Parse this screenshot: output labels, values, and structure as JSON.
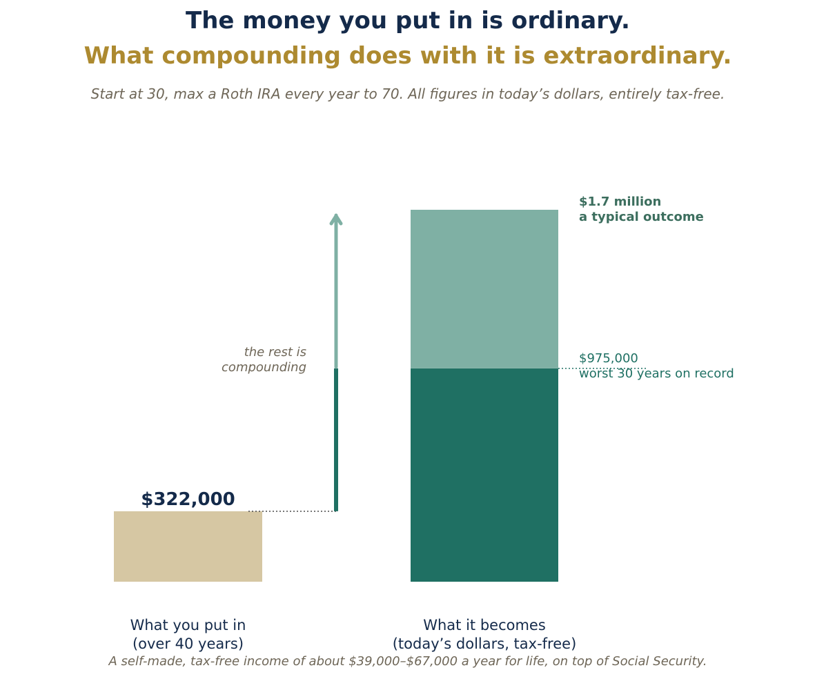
{
  "header": {
    "title_line1": "The money you put in is ordinary.",
    "title_line2": "What compounding does with it is extraordinary.",
    "subtitle": "Start at 30, max a Roth IRA every year to 70.  All figures in today’s dollars, entirely tax-free."
  },
  "footnote": "A self-made, tax-free income of about $39,000–$67,000 a year for life, on top of Social Security.",
  "colors": {
    "navy": "#142a4a",
    "gold": "#ad8a30",
    "tan": "#d6c7a3",
    "teal_dark": "#1f7063",
    "teal_light": "#7fb0a4",
    "green_label": "#3c6e5e",
    "muted": "#6e6657"
  },
  "chart_data": {
    "type": "bar",
    "title": "",
    "xlabel": "",
    "ylabel": "",
    "ylim": [
      0,
      1700000
    ],
    "grid": false,
    "categories": [
      {
        "line1": "What you put in",
        "line2": "(over 40 years)"
      },
      {
        "line1": "What it becomes",
        "line2": "(today’s dollars, tax-free)"
      }
    ],
    "contributions": {
      "value": 322000,
      "label": "$322,000"
    },
    "outcome": {
      "worst": {
        "value": 975000,
        "label_line1": "$975,000",
        "label_line2": "worst 30 years on record"
      },
      "typical": {
        "value": 1700000,
        "label_line1": "$1.7 million",
        "label_line2": "a typical outcome"
      }
    },
    "annotation": {
      "line1": "the rest is",
      "line2": "compounding"
    }
  }
}
